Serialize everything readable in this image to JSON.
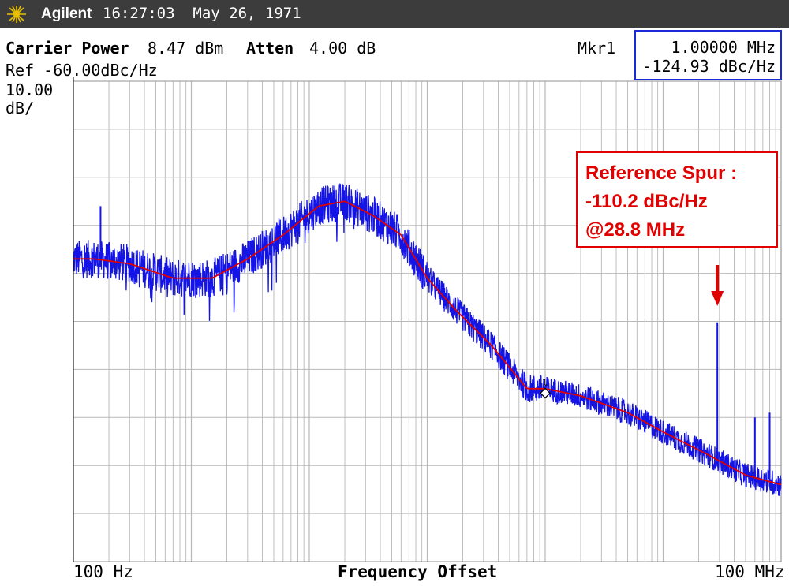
{
  "header": {
    "brand": "Agilent",
    "datetime": "16:27:03  May 26, 1971",
    "carrier_power_label": "Carrier Power",
    "carrier_power_value": "8.47 dBm",
    "atten_label": "Atten",
    "atten_value": "4.00 dB",
    "ref_text": "Ref -60.00dBc/Hz",
    "scale_value": "10.00",
    "scale_unit": "dB/"
  },
  "marker": {
    "label": "Mkr1",
    "freq": "1.00000 MHz",
    "level": "-124.93 dBc/Hz",
    "id": "1"
  },
  "annotation": {
    "line1": "Reference Spur :",
    "line2": "-110.2 dBc/Hz",
    "line3": "@28.8 MHz"
  },
  "colors": {
    "trace": "#1414e6",
    "smoothed": "#e00000",
    "grid": "#b8b8b8",
    "titlebar": "#3c3c3c"
  },
  "chart_data": {
    "type": "line",
    "title": "",
    "xlabel": "Frequency Offset",
    "ylabel": "",
    "x_scale": "log",
    "xlim": [
      100,
      100000000
    ],
    "ylim": [
      -160,
      -60
    ],
    "xtick_labels": [
      "100 Hz",
      "100 MHz"
    ],
    "grid": true,
    "series": [
      {
        "name": "",
        "x": [
          100,
          150,
          300,
          700,
          1500,
          3000,
          6000,
          12000,
          20000,
          35000,
          60000,
          100000,
          180000,
          350000,
          700000,
          1000000,
          2000000,
          5000000,
          10000000,
          25000000,
          50000000,
          100000000
        ],
        "values": [
          -97,
          -97,
          -98,
          -101,
          -101,
          -97,
          -92,
          -86,
          -85,
          -88,
          -92,
          -101,
          -108,
          -115,
          -124,
          -124,
          -125.5,
          -129,
          -133,
          -138,
          -142,
          -144
        ]
      },
      {
        "name": "",
        "x": [
          100,
          150,
          300,
          700,
          1500,
          3000,
          6000,
          12000,
          20000,
          35000,
          60000,
          100000,
          180000,
          350000,
          700000,
          1000000,
          2000000,
          5000000,
          10000000,
          25000000,
          50000000,
          100000000
        ],
        "values": [
          -97,
          -97,
          -98,
          -101,
          -101,
          -97,
          -92,
          -86,
          -85,
          -88,
          -92,
          -101,
          -108,
          -115,
          -124,
          -124,
          -125.5,
          -129,
          -133,
          -138,
          -142,
          -144
        ]
      }
    ],
    "spurs": [
      {
        "x": 170,
        "y": -86
      },
      {
        "x": 28800000,
        "y": -110.2
      },
      {
        "x": 60000000,
        "y": -130
      },
      {
        "x": 80000000,
        "y": -129
      }
    ],
    "marker": {
      "x": 1000000,
      "y": -124.93
    }
  }
}
